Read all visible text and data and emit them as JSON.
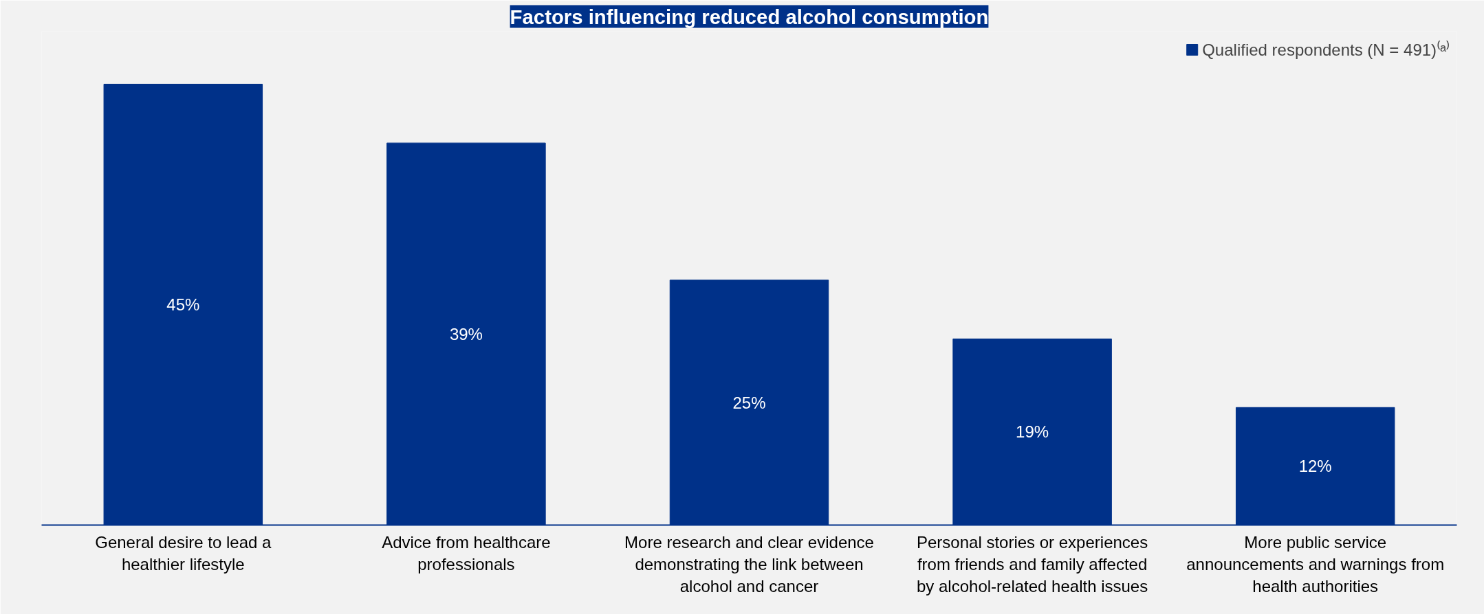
{
  "chart_data": {
    "type": "bar",
    "title": "Factors influencing reduced alcohol consumption",
    "categories": [
      "General desire to lead a healthier lifestyle",
      "Advice from healthcare professionals",
      "More research and clear evidence demonstrating the link between alcohol and cancer",
      "Personal stories or experiences from friends and family affected by alcohol-related health issues",
      "More public service announcements and warnings from health authorities"
    ],
    "series": [
      {
        "name": "Qualified respondents (N = 491)⁽ᵃ⁾",
        "color": "#003189",
        "values": [
          45,
          39,
          25,
          19,
          12
        ],
        "value_labels": [
          "45%",
          "39%",
          "25%",
          "19%",
          "12%"
        ]
      }
    ],
    "legend": "top right",
    "grid": false,
    "tick_labels": "x"
  }
}
